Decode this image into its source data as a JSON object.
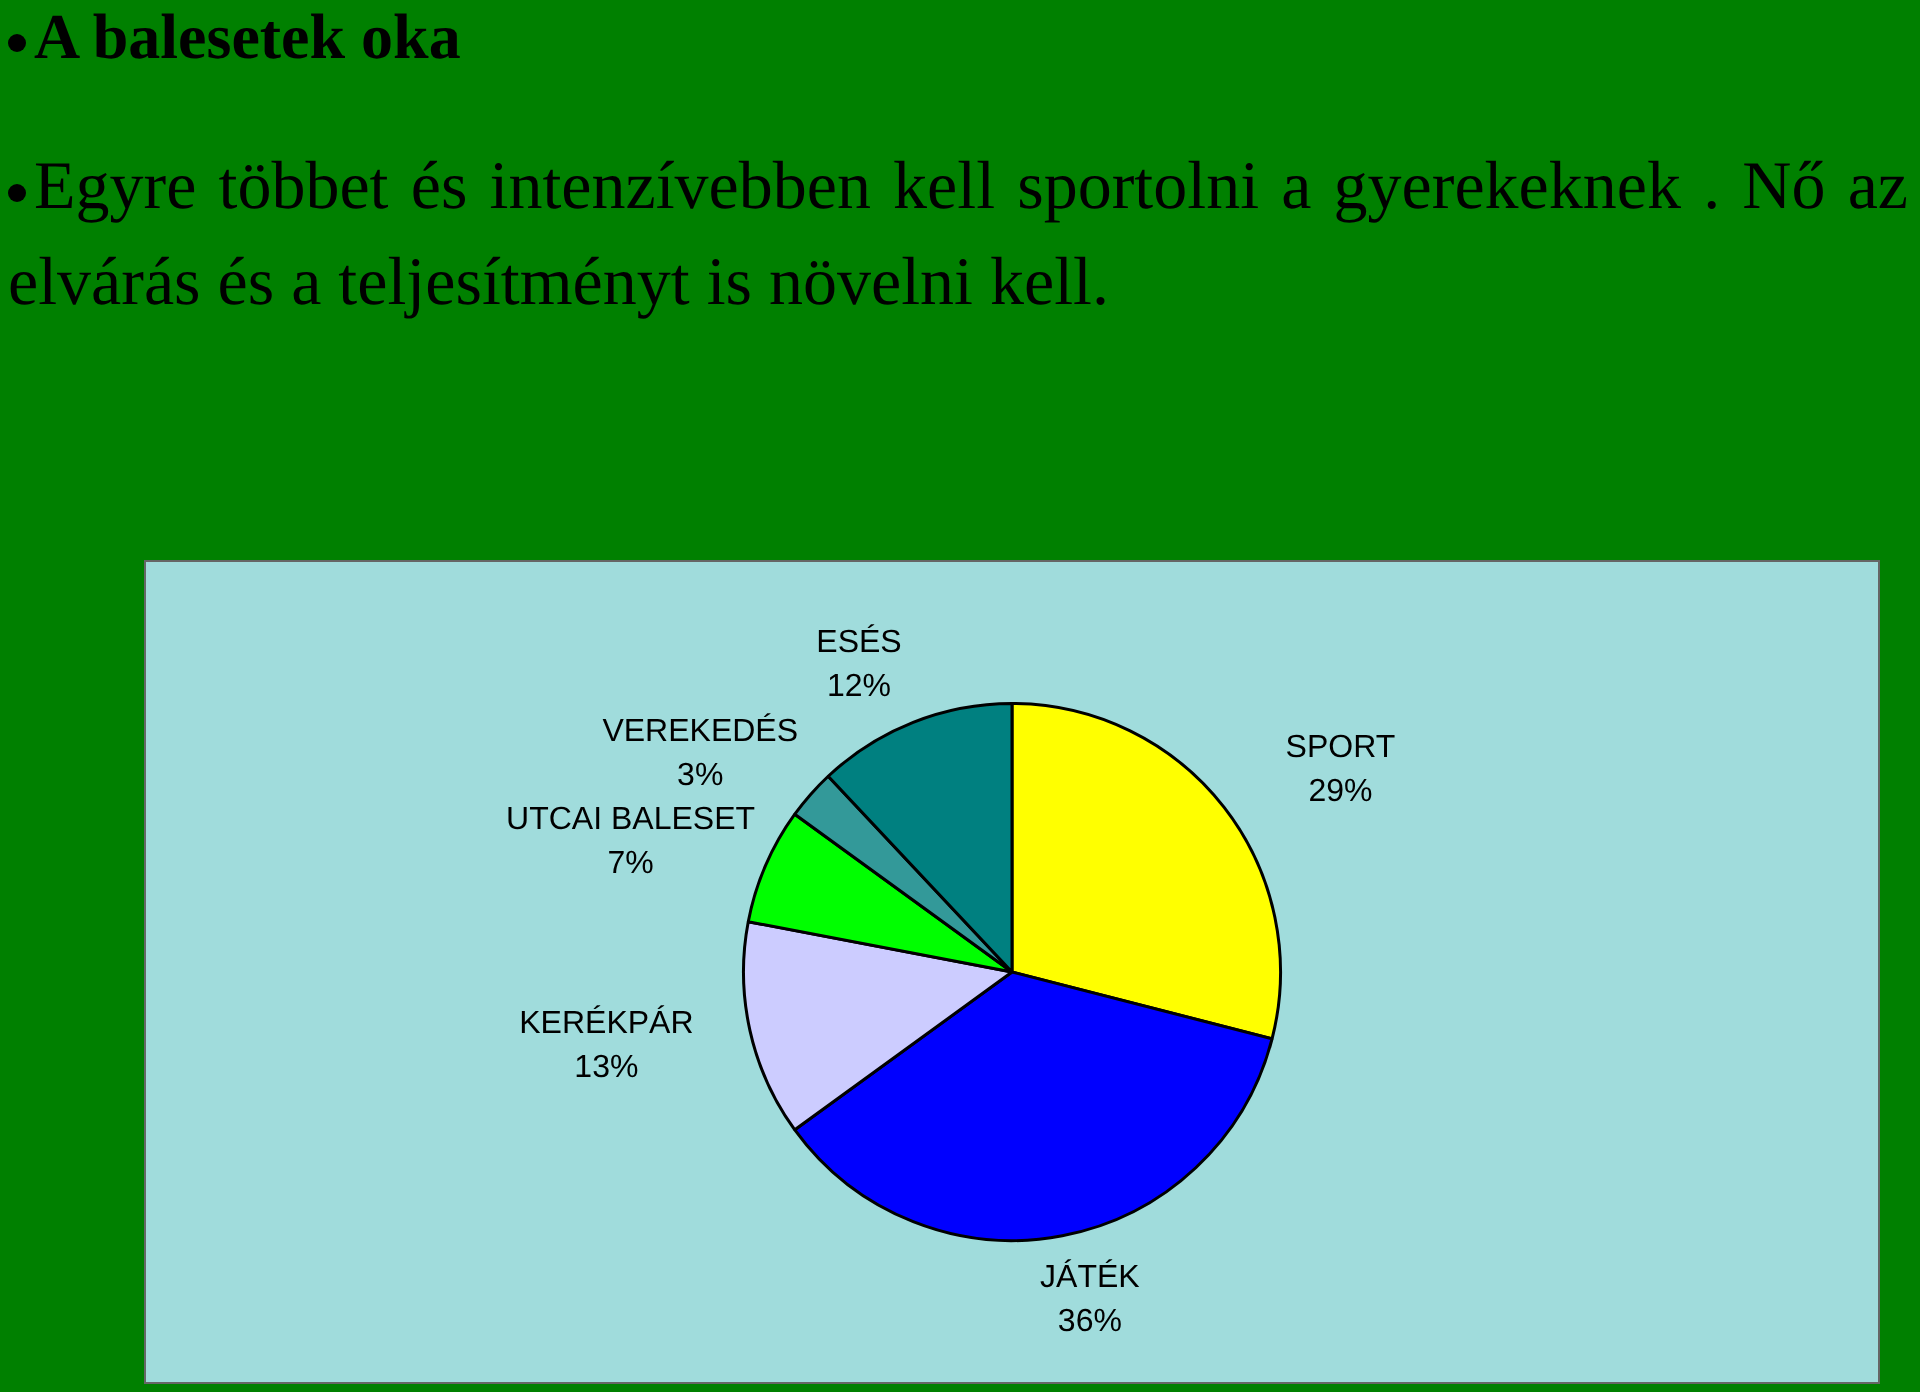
{
  "chart_data": {
    "type": "pie",
    "title": "A balesetek oka",
    "subtitle": "Egyre többet és intenzívebben kell sportolni a gyerekeknek . Nő az elvárás és a teljesítményt is növelni kell.",
    "categories": [
      "SPORT",
      "JÁTÉK",
      "KERÉKPÁR",
      "UTCAI BALESET",
      "VEREKEDÉS",
      "ESÉS"
    ],
    "values": [
      29,
      36,
      13,
      7,
      3,
      12
    ],
    "colors": [
      "#ffff00",
      "#0000ff",
      "#ccccff",
      "#00ff00",
      "#339999",
      "#008080"
    ],
    "value_labels": [
      "29%",
      "36%",
      "13%",
      "7%",
      "3%",
      "12%"
    ]
  }
}
